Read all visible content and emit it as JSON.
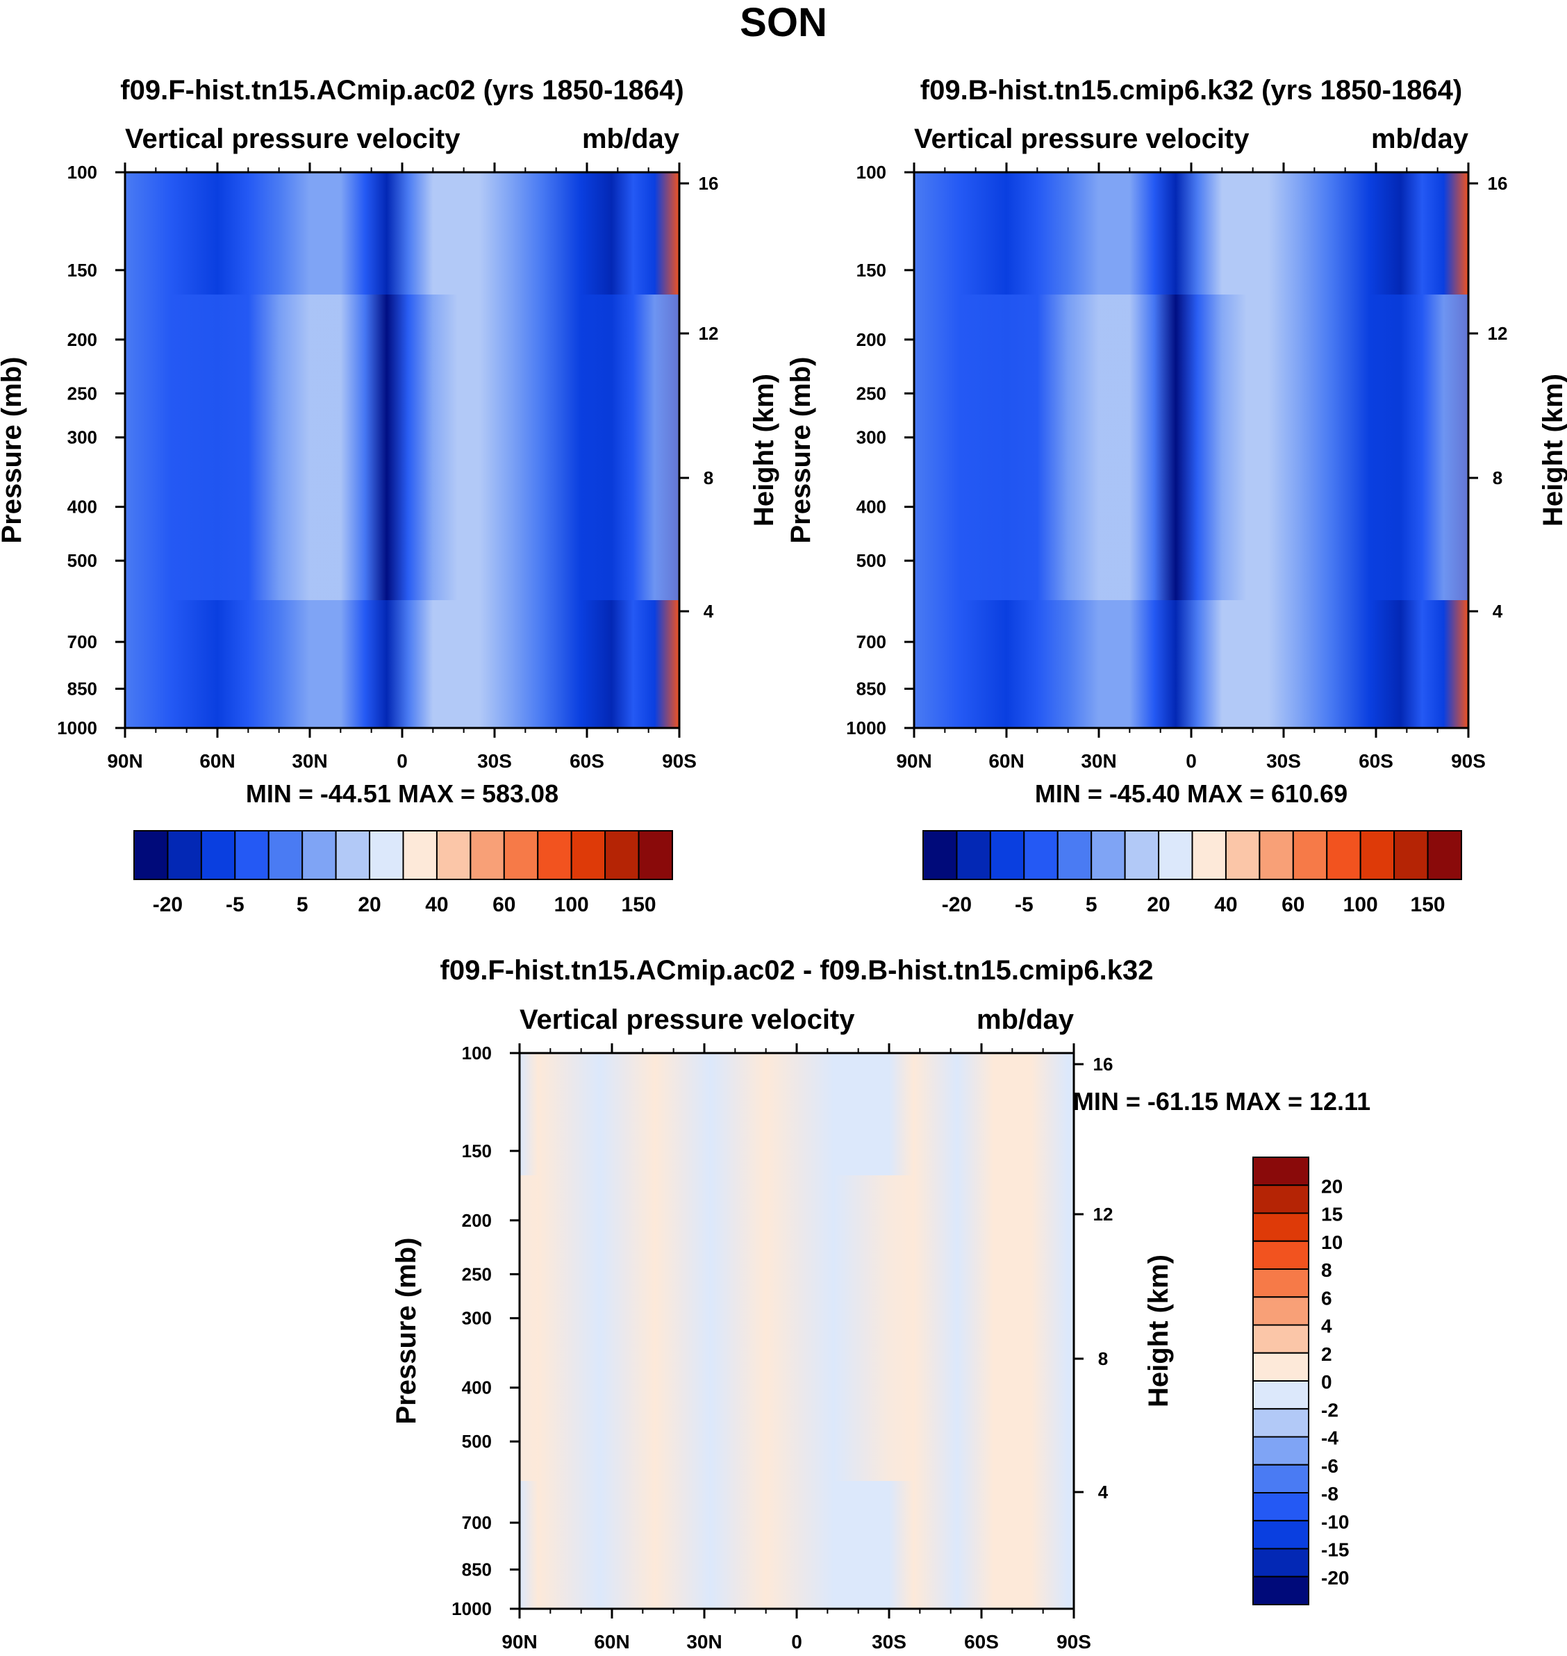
{
  "figure_title": "SON",
  "colors": {
    "control_levels": [
      "#000a7a",
      "#0328b5",
      "#0a3fe0",
      "#2459f4",
      "#4a7bf3",
      "#7fa4f5",
      "#b2c9f7",
      "#dce8fb",
      "#fde9d9",
      "#fbc6a8",
      "#f8a077",
      "#f67a48",
      "#f2531f",
      "#de3a08",
      "#b52405",
      "#8a0a0a"
    ],
    "diff_levels": [
      "#000a7a",
      "#0328b5",
      "#0a3fe0",
      "#2459f4",
      "#4a7bf3",
      "#7fa4f5",
      "#b2c9f7",
      "#dce8fb",
      "#fde9d9",
      "#fbc6a8",
      "#f8a077",
      "#f67a48",
      "#f2531f",
      "#de3a08",
      "#b52405",
      "#8a0a0a"
    ]
  },
  "chart_data": [
    {
      "type": "heatmap",
      "title": "f09.F-hist.tn15.ACmip.ac02 (yrs 1850-1864)",
      "left_label": "Vertical pressure velocity",
      "right_label": "mb/day",
      "xlabel": "",
      "ylabel": "Pressure (mb)",
      "y2label": "Height (km)",
      "x_ticks": [
        "90N",
        "60N",
        "30N",
        "0",
        "30S",
        "60S",
        "90S"
      ],
      "x_range": [
        -90,
        90
      ],
      "y_ticks": [
        100,
        150,
        200,
        250,
        300,
        400,
        500,
        700,
        850,
        1000
      ],
      "ylim": [
        1000,
        100
      ],
      "y2_ticks": [
        16,
        12,
        8,
        4
      ],
      "stats": "MIN = -44.51  MAX = 583.08",
      "colorbar_labels": [
        "-20",
        "-5",
        "5",
        "20",
        "40",
        "60",
        "100",
        "150"
      ],
      "bands": [
        {
          "lat": -90,
          "base": 4,
          "peak": 4
        },
        {
          "lat": -75,
          "base": 3,
          "peak": 3
        },
        {
          "lat": -60,
          "base": 2,
          "peak": 3
        },
        {
          "lat": -50,
          "base": 3,
          "peak": 3
        },
        {
          "lat": -40,
          "base": 4,
          "peak": 5
        },
        {
          "lat": -30,
          "base": 5,
          "peak": 6
        },
        {
          "lat": -20,
          "base": 5,
          "peak": 6
        },
        {
          "lat": -12,
          "base": 3,
          "peak": 4
        },
        {
          "lat": -5,
          "base": 1,
          "peak": 0
        },
        {
          "lat": 2,
          "base": 4,
          "peak": 3
        },
        {
          "lat": 10,
          "base": 6,
          "peak": 5
        },
        {
          "lat": 18,
          "base": 6,
          "peak": 6
        },
        {
          "lat": 25,
          "base": 6,
          "peak": 6
        },
        {
          "lat": 35,
          "base": 5,
          "peak": 5
        },
        {
          "lat": 45,
          "base": 4,
          "peak": 4
        },
        {
          "lat": 58,
          "base": 2,
          "peak": 2
        },
        {
          "lat": 68,
          "base": 1,
          "peak": 2
        },
        {
          "lat": 75,
          "base": 3,
          "peak": 3
        },
        {
          "lat": 82,
          "base": 2,
          "peak": 5
        },
        {
          "lat": 90,
          "base": 12,
          "peak": 4
        }
      ]
    },
    {
      "type": "heatmap",
      "title": "f09.B-hist.tn15.cmip6.k32 (yrs 1850-1864)",
      "left_label": "Vertical pressure velocity",
      "right_label": "mb/day",
      "xlabel": "",
      "ylabel": "Pressure (mb)",
      "y2label": "Height (km)",
      "x_ticks": [
        "90N",
        "60N",
        "30N",
        "0",
        "30S",
        "60S",
        "90S"
      ],
      "x_range": [
        -90,
        90
      ],
      "y_ticks": [
        100,
        150,
        200,
        250,
        300,
        400,
        500,
        700,
        850,
        1000
      ],
      "ylim": [
        1000,
        100
      ],
      "y2_ticks": [
        16,
        12,
        8,
        4
      ],
      "stats": "MIN = -45.40  MAX = 610.69",
      "colorbar_labels": [
        "-20",
        "-5",
        "5",
        "20",
        "40",
        "60",
        "100",
        "150"
      ],
      "bands": [
        {
          "lat": -90,
          "base": 4,
          "peak": 4
        },
        {
          "lat": -75,
          "base": 3,
          "peak": 3
        },
        {
          "lat": -60,
          "base": 2,
          "peak": 3
        },
        {
          "lat": -50,
          "base": 3,
          "peak": 3
        },
        {
          "lat": -40,
          "base": 4,
          "peak": 5
        },
        {
          "lat": -30,
          "base": 5,
          "peak": 6
        },
        {
          "lat": -20,
          "base": 5,
          "peak": 6
        },
        {
          "lat": -12,
          "base": 3,
          "peak": 4
        },
        {
          "lat": -5,
          "base": 1,
          "peak": 0
        },
        {
          "lat": 2,
          "base": 4,
          "peak": 3
        },
        {
          "lat": 10,
          "base": 6,
          "peak": 5
        },
        {
          "lat": 18,
          "base": 6,
          "peak": 6
        },
        {
          "lat": 25,
          "base": 6,
          "peak": 6
        },
        {
          "lat": 35,
          "base": 5,
          "peak": 5
        },
        {
          "lat": 45,
          "base": 4,
          "peak": 4
        },
        {
          "lat": 58,
          "base": 2,
          "peak": 2
        },
        {
          "lat": 68,
          "base": 1,
          "peak": 2
        },
        {
          "lat": 75,
          "base": 3,
          "peak": 3
        },
        {
          "lat": 82,
          "base": 2,
          "peak": 5
        },
        {
          "lat": 90,
          "base": 12,
          "peak": 4
        }
      ]
    },
    {
      "type": "heatmap",
      "title": "f09.F-hist.tn15.ACmip.ac02 - f09.B-hist.tn15.cmip6.k32",
      "left_label": "Vertical pressure velocity",
      "right_label": "mb/day",
      "xlabel": "",
      "ylabel": "Pressure (mb)",
      "y2label": "Height (km)",
      "x_ticks": [
        "90N",
        "60N",
        "30N",
        "0",
        "30S",
        "60S",
        "90S"
      ],
      "x_range": [
        -90,
        90
      ],
      "y_ticks": [
        100,
        150,
        200,
        250,
        300,
        400,
        500,
        700,
        850,
        1000
      ],
      "ylim": [
        1000,
        100
      ],
      "y2_ticks": [
        16,
        12,
        8,
        4
      ],
      "stats": "MIN = -61.15  MAX =  12.11",
      "colorbar_labels": [
        "20",
        "15",
        "10",
        "8",
        "6",
        "4",
        "2",
        "0",
        "-2",
        "-4",
        "-6",
        "-8",
        "-10",
        "-15",
        "-20"
      ],
      "bands": [
        {
          "lat": -90,
          "base": 7,
          "peak": 8
        },
        {
          "lat": -84,
          "base": 8,
          "peak": 8
        },
        {
          "lat": -64,
          "base": 7,
          "peak": 7
        },
        {
          "lat": -46,
          "base": 8,
          "peak": 8
        },
        {
          "lat": -28,
          "base": 7,
          "peak": 7
        },
        {
          "lat": -10,
          "base": 8,
          "peak": 8
        },
        {
          "lat": 12,
          "base": 7,
          "peak": 7
        },
        {
          "lat": 30,
          "base": 7,
          "peak": 8
        },
        {
          "lat": 38,
          "base": 8,
          "peak": 8
        },
        {
          "lat": 52,
          "base": 7,
          "peak": 7
        },
        {
          "lat": 64,
          "base": 8,
          "peak": 8
        },
        {
          "lat": 76,
          "base": 8,
          "peak": 8
        },
        {
          "lat": 88,
          "base": 7,
          "peak": 7
        }
      ]
    }
  ]
}
